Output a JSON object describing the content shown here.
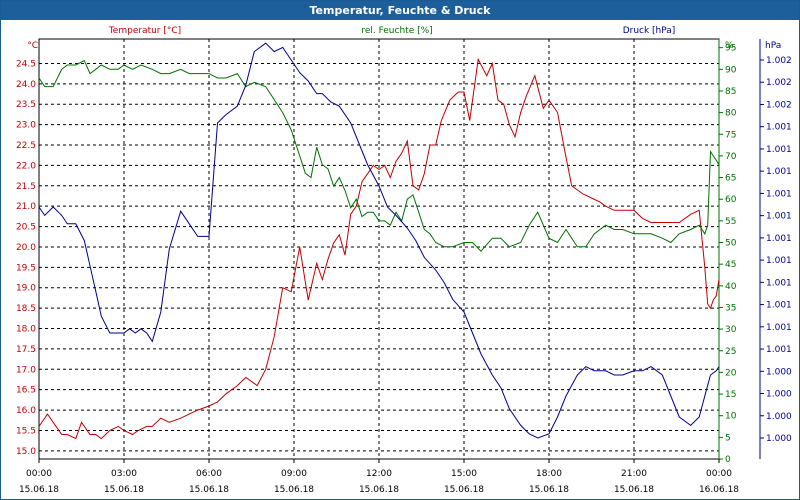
{
  "window": {
    "title": "Temperatur, Feuchte & Druck"
  },
  "colors": {
    "temperature": "#c00000",
    "humidity": "#007000",
    "pressure": "#000090",
    "grid": "#000000"
  },
  "chart_data": {
    "type": "line",
    "title": "Temperatur, Feuchte & Druck",
    "x_unit": "hours since 15.06.18 00:00",
    "xlim": [
      0,
      24
    ],
    "x_ticks": [
      {
        "t": 0,
        "time": "00:00",
        "date": "15.06.18"
      },
      {
        "t": 3,
        "time": "03:00",
        "date": "15.06.18"
      },
      {
        "t": 6,
        "time": "06:00",
        "date": "15.06.18"
      },
      {
        "t": 9,
        "time": "09:00",
        "date": "15.06.18"
      },
      {
        "t": 12,
        "time": "12:00",
        "date": "15.06.18"
      },
      {
        "t": 15,
        "time": "15:00",
        "date": "15.06.18"
      },
      {
        "t": 18,
        "time": "18:00",
        "date": "15.06.18"
      },
      {
        "t": 21,
        "time": "21:00",
        "date": "15.06.18"
      },
      {
        "t": 24,
        "time": "00:00",
        "date": "16.06.18"
      }
    ],
    "axes": {
      "temperature": {
        "label": "Temperatur [°C]",
        "unit": "°C",
        "ylim": [
          14.8,
          25.1
        ],
        "ticks": [
          "15.0",
          "15.5",
          "16.0",
          "16.5",
          "17.0",
          "17.5",
          "18.0",
          "18.5",
          "19.0",
          "19.5",
          "20.0",
          "20.5",
          "21.0",
          "21.5",
          "22.0",
          "22.5",
          "23.0",
          "23.5",
          "24.0",
          "24.5"
        ]
      },
      "humidity": {
        "label": "rel. Feuchte [%]",
        "unit": "%",
        "ylim": [
          0,
          97
        ],
        "ticks": [
          "0",
          "5",
          "10",
          "15",
          "20",
          "25",
          "30",
          "35",
          "40",
          "45",
          "50",
          "55",
          "60",
          "65",
          "70",
          "75",
          "80",
          "85",
          "90",
          "95"
        ]
      },
      "pressure": {
        "label": "Druck [hPa]",
        "unit": "hPa",
        "ylim": [
          0,
          1
        ],
        "ticks": [
          "1.000",
          "1.000",
          "1.000",
          "1.000",
          "1.001",
          "1.001",
          "1.001",
          "1.001",
          "1.001",
          "1.001",
          "1.001",
          "1.001",
          "1.001",
          "1.001",
          "1.001",
          "1.002",
          "1.002",
          "1.002"
        ]
      }
    },
    "series": [
      {
        "name": "Temperatur [°C]",
        "axis": "temperature",
        "x": [
          0,
          0.3,
          0.5,
          0.8,
          1.0,
          1.3,
          1.5,
          1.8,
          2.0,
          2.2,
          2.5,
          2.8,
          3.0,
          3.3,
          3.5,
          3.8,
          4.0,
          4.3,
          4.6,
          5.0,
          5.3,
          5.6,
          6.0,
          6.3,
          6.6,
          7.0,
          7.3,
          7.7,
          8.0,
          8.3,
          8.6,
          8.9,
          9.2,
          9.5,
          9.8,
          10.0,
          10.2,
          10.4,
          10.6,
          10.8,
          11.0,
          11.2,
          11.4,
          11.6,
          11.8,
          12.0,
          12.2,
          12.4,
          12.6,
          12.8,
          13.0,
          13.2,
          13.4,
          13.6,
          13.8,
          14.0,
          14.2,
          14.5,
          14.8,
          15.0,
          15.2,
          15.5,
          15.8,
          16.0,
          16.2,
          16.4,
          16.6,
          16.8,
          17.0,
          17.2,
          17.5,
          17.8,
          18.0,
          18.3,
          18.6,
          18.8,
          19.0,
          19.2,
          19.5,
          19.8,
          20.0,
          20.3,
          20.6,
          21.0,
          21.3,
          21.6,
          22.0,
          22.3,
          22.6,
          23.0,
          23.3,
          23.5,
          23.6,
          23.7,
          23.8,
          23.9,
          24.0
        ],
        "values": [
          15.6,
          15.9,
          15.7,
          15.4,
          15.4,
          15.3,
          15.7,
          15.4,
          15.4,
          15.3,
          15.5,
          15.6,
          15.5,
          15.4,
          15.5,
          15.6,
          15.6,
          15.8,
          15.7,
          15.8,
          15.9,
          16.0,
          16.1,
          16.2,
          16.4,
          16.6,
          16.8,
          16.6,
          17.0,
          17.8,
          19.0,
          18.9,
          20.0,
          18.7,
          19.6,
          19.2,
          19.7,
          20.1,
          20.3,
          19.8,
          20.8,
          21.0,
          21.6,
          21.8,
          22.0,
          21.9,
          22.0,
          21.7,
          22.1,
          22.3,
          22.6,
          21.5,
          21.4,
          21.8,
          22.5,
          22.5,
          23.1,
          23.6,
          23.8,
          23.8,
          23.1,
          24.6,
          24.2,
          24.5,
          23.6,
          23.5,
          23.0,
          22.7,
          23.3,
          23.7,
          24.2,
          23.4,
          23.6,
          23.3,
          22.2,
          21.5,
          21.4,
          21.3,
          21.2,
          21.1,
          21.0,
          20.9,
          20.9,
          20.9,
          20.7,
          20.6,
          20.6,
          20.6,
          20.6,
          20.8,
          20.9,
          19.5,
          18.6,
          18.5,
          18.7,
          18.8,
          19.2
        ]
      },
      {
        "name": "rel. Feuchte [%]",
        "axis": "humidity",
        "x": [
          0,
          0.2,
          0.5,
          0.8,
          1.0,
          1.3,
          1.6,
          1.8,
          2.0,
          2.2,
          2.5,
          2.8,
          3.0,
          3.3,
          3.6,
          4.0,
          4.3,
          4.6,
          5.0,
          5.3,
          5.6,
          6.0,
          6.3,
          6.6,
          7.0,
          7.3,
          7.6,
          8.0,
          8.3,
          8.6,
          8.9,
          9.2,
          9.4,
          9.6,
          9.8,
          10.0,
          10.2,
          10.4,
          10.6,
          10.8,
          11.0,
          11.2,
          11.4,
          11.6,
          11.8,
          12.0,
          12.2,
          12.4,
          12.6,
          12.8,
          13.0,
          13.2,
          13.4,
          13.6,
          13.8,
          14.0,
          14.3,
          14.6,
          15.0,
          15.3,
          15.6,
          16.0,
          16.3,
          16.6,
          17.0,
          17.3,
          17.6,
          18.0,
          18.3,
          18.6,
          19.0,
          19.3,
          19.6,
          20.0,
          20.3,
          20.6,
          21.0,
          21.3,
          21.6,
          22.0,
          22.3,
          22.6,
          23.0,
          23.3,
          23.5,
          23.6,
          23.7,
          23.8,
          23.9,
          24.0
        ],
        "values": [
          88,
          86,
          86,
          90,
          91,
          91,
          92,
          89,
          90,
          91,
          90,
          90,
          91,
          90,
          91,
          90,
          89,
          89,
          90,
          89,
          89,
          89,
          88,
          88,
          89,
          86,
          87,
          86,
          83,
          80,
          76,
          70,
          66,
          65,
          72,
          68,
          67,
          63,
          65,
          62,
          58,
          60,
          56,
          57,
          57,
          55,
          55,
          54,
          57,
          55,
          60,
          61,
          57,
          53,
          52,
          50,
          49,
          49,
          50,
          50,
          48,
          51,
          51,
          49,
          50,
          54,
          57,
          51,
          50,
          53,
          49,
          49,
          52,
          54,
          53,
          53,
          52,
          52,
          52,
          51,
          50,
          52,
          53,
          54,
          52,
          54,
          71,
          70,
          69,
          68
        ]
      },
      {
        "name": "Druck [hPa]",
        "axis": "pressure",
        "x": [
          0,
          0.2,
          0.5,
          0.8,
          1.0,
          1.3,
          1.6,
          1.8,
          2.0,
          2.2,
          2.5,
          2.8,
          3.0,
          3.2,
          3.4,
          3.6,
          3.8,
          4.0,
          4.3,
          4.6,
          5.0,
          5.3,
          5.6,
          6.0,
          6.3,
          6.6,
          7.0,
          7.3,
          7.6,
          8.0,
          8.3,
          8.6,
          8.9,
          9.2,
          9.5,
          9.8,
          10.0,
          10.3,
          10.6,
          11.0,
          11.3,
          11.6,
          12.0,
          12.3,
          12.6,
          13.0,
          13.3,
          13.6,
          14.0,
          14.3,
          14.6,
          15.0,
          15.3,
          15.6,
          16.0,
          16.3,
          16.6,
          17.0,
          17.3,
          17.6,
          18.0,
          18.3,
          18.6,
          19.0,
          19.3,
          19.6,
          20.0,
          20.3,
          20.6,
          21.0,
          21.3,
          21.6,
          22.0,
          22.3,
          22.6,
          23.0,
          23.3,
          23.5,
          23.7,
          23.9,
          24.0
        ],
        "values": [
          0.6,
          0.58,
          0.6,
          0.58,
          0.56,
          0.56,
          0.52,
          0.46,
          0.4,
          0.34,
          0.3,
          0.3,
          0.3,
          0.31,
          0.3,
          0.31,
          0.3,
          0.28,
          0.35,
          0.5,
          0.59,
          0.56,
          0.53,
          0.53,
          0.8,
          0.82,
          0.84,
          0.89,
          0.97,
          0.99,
          0.97,
          0.98,
          0.95,
          0.92,
          0.9,
          0.87,
          0.87,
          0.85,
          0.84,
          0.8,
          0.75,
          0.7,
          0.65,
          0.6,
          0.58,
          0.55,
          0.52,
          0.48,
          0.45,
          0.42,
          0.38,
          0.35,
          0.3,
          0.25,
          0.2,
          0.17,
          0.12,
          0.08,
          0.06,
          0.05,
          0.06,
          0.1,
          0.15,
          0.2,
          0.22,
          0.21,
          0.21,
          0.2,
          0.2,
          0.21,
          0.21,
          0.22,
          0.2,
          0.15,
          0.1,
          0.08,
          0.1,
          0.15,
          0.2,
          0.21,
          0.22
        ]
      }
    ]
  }
}
